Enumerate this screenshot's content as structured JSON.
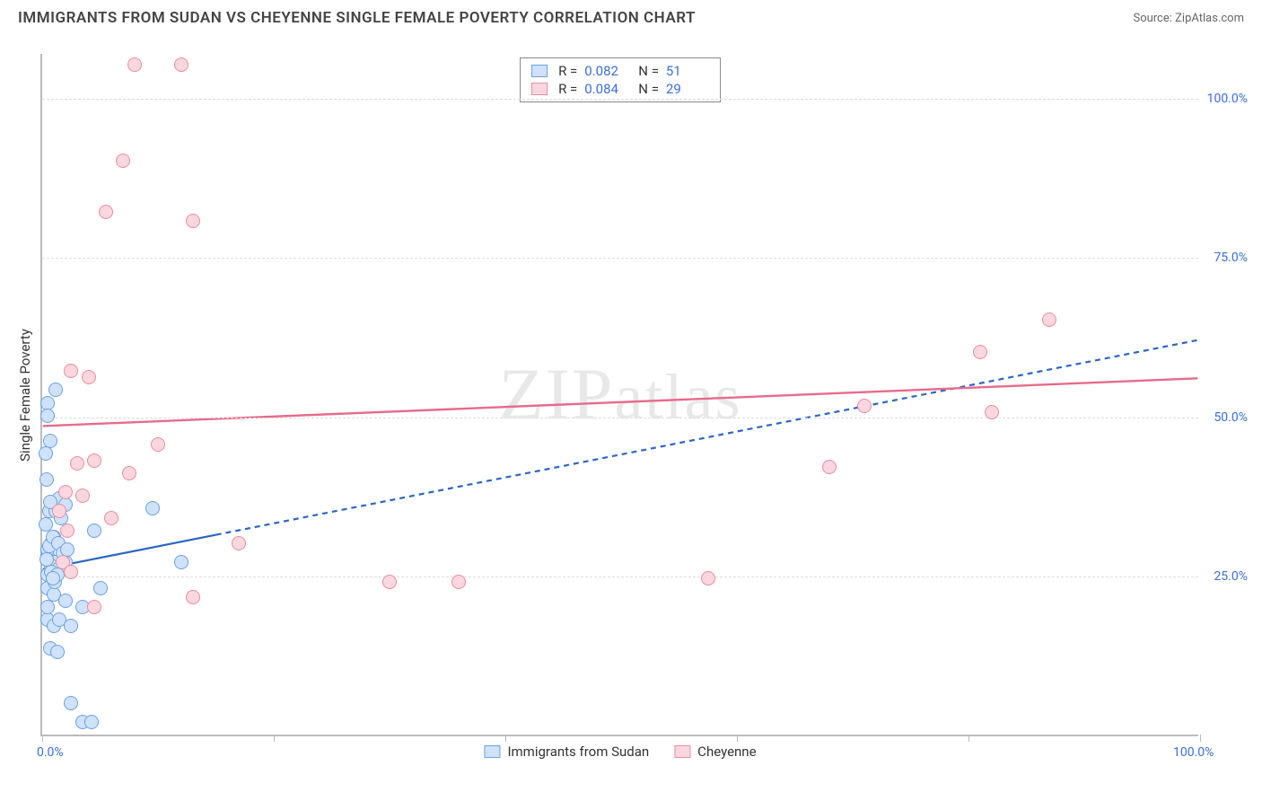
{
  "header": {
    "title": "IMMIGRANTS FROM SUDAN VS CHEYENNE SINGLE FEMALE POVERTY CORRELATION CHART",
    "source": "Source: ZipAtlas.com"
  },
  "watermark": "ZIPatlas",
  "chart": {
    "type": "scatter",
    "y_title": "Single Female Poverty",
    "xlim": [
      0,
      100
    ],
    "ylim": [
      0,
      107
    ],
    "grid_y": [
      25,
      50,
      75,
      100
    ],
    "y_tick_labels": [
      "25.0%",
      "50.0%",
      "75.0%",
      "100.0%"
    ],
    "x_ticks": [
      0,
      20,
      40,
      60,
      80,
      100
    ],
    "x_tick_labels": {
      "0": "0.0%",
      "100": "100.0%"
    },
    "grid_color": "#dddddd",
    "axis_color": "#bbbbbb",
    "label_color": "#3b6fd8",
    "background_color": "#ffffff",
    "marker_radius": 8,
    "marker_stroke_width": 1.5,
    "series": [
      {
        "name": "Immigrants from Sudan",
        "fill": "#cfe2f9",
        "stroke": "#6aa0e5",
        "R": "0.082",
        "N": "51",
        "trend": {
          "y_at_x0": 26,
          "y_at_x100": 62,
          "solid_until_x": 15,
          "color": "#2b66c4",
          "width": 2.2,
          "dash": "6,5"
        },
        "points": [
          [
            0.5,
            52
          ],
          [
            0.5,
            50
          ],
          [
            1.2,
            54
          ],
          [
            0.7,
            46
          ],
          [
            0.3,
            44
          ],
          [
            1.0,
            31
          ],
          [
            0.6,
            35
          ],
          [
            1.2,
            35
          ],
          [
            1.5,
            37
          ],
          [
            2.0,
            36
          ],
          [
            0.8,
            30
          ],
          [
            0.5,
            28
          ],
          [
            0.5,
            29
          ],
          [
            1.0,
            27
          ],
          [
            1.2,
            27
          ],
          [
            0.8,
            26.5
          ],
          [
            1.5,
            26
          ],
          [
            2.0,
            27
          ],
          [
            4.5,
            32
          ],
          [
            9.5,
            35.5
          ],
          [
            12,
            27
          ],
          [
            0.5,
            23
          ],
          [
            1.0,
            22
          ],
          [
            2.0,
            21
          ],
          [
            3.5,
            20
          ],
          [
            5.0,
            23
          ],
          [
            0.5,
            18
          ],
          [
            1.0,
            17
          ],
          [
            1.5,
            18
          ],
          [
            2.5,
            17
          ],
          [
            0.7,
            13.5
          ],
          [
            1.3,
            13
          ],
          [
            2.5,
            5
          ],
          [
            3.5,
            2
          ],
          [
            4.3,
            2
          ],
          [
            0.5,
            25
          ],
          [
            0.8,
            25.5
          ],
          [
            1.1,
            24
          ],
          [
            1.3,
            25
          ],
          [
            0.4,
            27.5
          ],
          [
            0.6,
            29.5
          ],
          [
            0.9,
            31
          ],
          [
            1.4,
            30
          ],
          [
            0.3,
            33
          ],
          [
            0.7,
            36.5
          ],
          [
            1.6,
            34
          ],
          [
            0.4,
            40
          ],
          [
            1.8,
            28.5
          ],
          [
            2.2,
            29
          ],
          [
            0.9,
            24.5
          ],
          [
            0.5,
            20
          ]
        ]
      },
      {
        "name": "Cheyenne",
        "fill": "#fad7df",
        "stroke": "#e98ba3",
        "R": "0.084",
        "N": "29",
        "trend": {
          "y_at_x0": 48.5,
          "y_at_x100": 56,
          "solid_until_x": 100,
          "color": "#e76b8c",
          "width": 2.4,
          "dash": ""
        },
        "points": [
          [
            8,
            105
          ],
          [
            12,
            105
          ],
          [
            7,
            90
          ],
          [
            5.5,
            82
          ],
          [
            13,
            80.5
          ],
          [
            2.5,
            57
          ],
          [
            4,
            56
          ],
          [
            10,
            45.5
          ],
          [
            4.5,
            43
          ],
          [
            3,
            42.5
          ],
          [
            7.5,
            41
          ],
          [
            2,
            38
          ],
          [
            3.5,
            37.5
          ],
          [
            1.5,
            35
          ],
          [
            2.2,
            32
          ],
          [
            17,
            30
          ],
          [
            13,
            21.5
          ],
          [
            4.5,
            20
          ],
          [
            30,
            24
          ],
          [
            36,
            24
          ],
          [
            57.5,
            24.5
          ],
          [
            71,
            51.5
          ],
          [
            68,
            42
          ],
          [
            82,
            50.5
          ],
          [
            81,
            60
          ],
          [
            87,
            65
          ],
          [
            1.8,
            27
          ],
          [
            2.5,
            25.5
          ],
          [
            6,
            34
          ]
        ]
      }
    ]
  }
}
